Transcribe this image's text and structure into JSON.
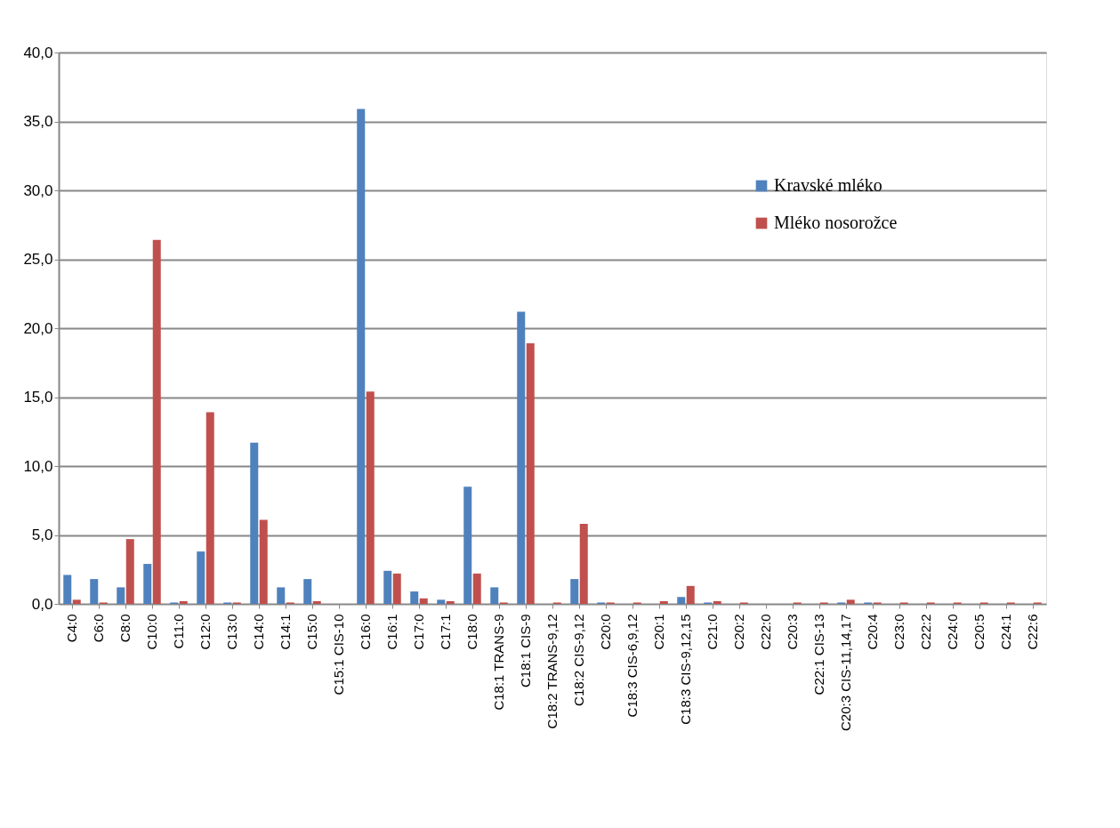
{
  "chart_data": {
    "type": "bar",
    "categories": [
      "C4:0",
      "C6:0",
      "C8:0",
      "C10:0",
      "C11:0",
      "C12:0",
      "C13:0",
      "C14:0",
      "C14:1",
      "C15:0",
      "C15:1 CIS-10",
      "C16:0",
      "C16:1",
      "C17:0",
      "C17:1",
      "C18:0",
      "C18:1 TRANS-9",
      "C18:1 CIS-9",
      "C18:2 TRANS-9,12",
      "C18:2 CIS-9,12",
      "C20:0",
      "C18:3 CIS-6,9,12",
      "C20:1",
      "C18:3 CIS-9,12,15",
      "C21:0",
      "C20:2",
      "C22:0",
      "C20:3",
      "C22:1 CIS-13",
      "C20:3 CIS-11,14,17",
      "C20:4",
      "C23:0",
      "C22:2",
      "C24:0",
      "C20:5",
      "C24:1",
      "C22:6"
    ],
    "series": [
      {
        "name": "Kravské mléko",
        "color": "#4f81bd",
        "values": [
          2.1,
          1.8,
          1.2,
          2.9,
          0.1,
          3.8,
          0.1,
          11.7,
          1.2,
          1.8,
          0.0,
          35.9,
          2.4,
          0.9,
          0.3,
          8.5,
          1.2,
          21.2,
          0.0,
          1.8,
          0.1,
          0.0,
          0.0,
          0.5,
          0.1,
          0.0,
          0.0,
          0.0,
          0.0,
          0.1,
          0.1,
          0.0,
          0.0,
          0.0,
          0.0,
          0.0,
          0.0
        ]
      },
      {
        "name": "Mléko nosorožce",
        "color": "#c0504d",
        "values": [
          0.3,
          0.1,
          4.7,
          26.4,
          0.2,
          13.9,
          0.1,
          6.1,
          0.1,
          0.2,
          0.0,
          15.4,
          2.2,
          0.4,
          0.2,
          2.2,
          0.1,
          18.9,
          0.1,
          5.8,
          0.1,
          0.1,
          0.2,
          1.3,
          0.2,
          0.1,
          0.0,
          0.1,
          0.1,
          0.3,
          0.1,
          0.1,
          0.1,
          0.1,
          0.1,
          0.1,
          0.1
        ]
      }
    ],
    "ylim": [
      0,
      40
    ],
    "yticks": [
      {
        "value": 0,
        "label": "0,0"
      },
      {
        "value": 5,
        "label": "5,0"
      },
      {
        "value": 10,
        "label": "10,0"
      },
      {
        "value": 15,
        "label": "15,0"
      },
      {
        "value": 20,
        "label": "20,0"
      },
      {
        "value": 25,
        "label": "25,0"
      },
      {
        "value": 30,
        "label": "30,0"
      },
      {
        "value": 35,
        "label": "35,0"
      },
      {
        "value": 40,
        "label": "40,0"
      }
    ],
    "grid": "y",
    "legend": "right"
  }
}
